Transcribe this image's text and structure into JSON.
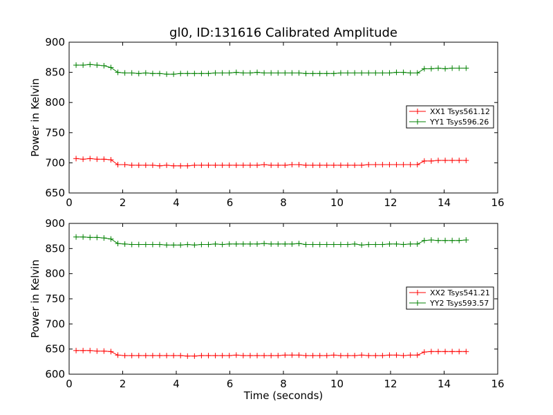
{
  "title": "gl0, ID:131616 Calibrated Amplitude",
  "chart_data": [
    {
      "type": "line",
      "title": "gl0, ID:131616 Calibrated Amplitude",
      "xlabel": "",
      "ylabel": "Power in Kelvin",
      "xlim": [
        0,
        16
      ],
      "ylim": [
        650,
        900
      ],
      "xticks": [
        "0",
        "2",
        "4",
        "6",
        "8",
        "10",
        "12",
        "14",
        "16"
      ],
      "yticks": [
        "650",
        "700",
        "750",
        "800",
        "850",
        "900"
      ],
      "grid": false,
      "legend_position": "right",
      "x": [
        0.26,
        0.52,
        0.78,
        1.04,
        1.3,
        1.56,
        1.82,
        2.08,
        2.34,
        2.6,
        2.86,
        3.12,
        3.38,
        3.64,
        3.9,
        4.16,
        4.42,
        4.68,
        4.94,
        5.2,
        5.46,
        5.72,
        5.98,
        6.24,
        6.5,
        6.76,
        7.02,
        7.28,
        7.54,
        7.8,
        8.06,
        8.32,
        8.58,
        8.84,
        9.1,
        9.36,
        9.62,
        9.88,
        10.14,
        10.4,
        10.66,
        10.92,
        11.18,
        11.44,
        11.7,
        11.96,
        12.22,
        12.48,
        12.74,
        13.0,
        13.26,
        13.52,
        13.78,
        14.04,
        14.3,
        14.56,
        14.82
      ],
      "series": [
        {
          "name": "XX1 Tsys561.12",
          "color": "#ff0000",
          "values": [
            707,
            706,
            707,
            706,
            706,
            705,
            697,
            697,
            696,
            696,
            696,
            696,
            695,
            696,
            695,
            695,
            695,
            696,
            696,
            696,
            696,
            696,
            696,
            696,
            696,
            696,
            696,
            697,
            696,
            696,
            696,
            697,
            697,
            696,
            696,
            696,
            696,
            696,
            696,
            696,
            696,
            696,
            697,
            697,
            697,
            697,
            697,
            697,
            697,
            697,
            703,
            703,
            704,
            704,
            704,
            704,
            704
          ]
        },
        {
          "name": "YY1 Tsys596.26",
          "color": "#008000",
          "values": [
            862,
            862,
            863,
            862,
            861,
            858,
            850,
            849,
            849,
            848,
            849,
            848,
            848,
            847,
            847,
            848,
            848,
            848,
            848,
            848,
            849,
            849,
            849,
            850,
            849,
            849,
            850,
            849,
            849,
            849,
            849,
            849,
            849,
            848,
            848,
            848,
            848,
            848,
            849,
            849,
            849,
            849,
            849,
            849,
            849,
            849,
            850,
            850,
            849,
            849,
            856,
            856,
            857,
            856,
            857,
            857,
            857
          ]
        }
      ]
    },
    {
      "type": "line",
      "title": "",
      "xlabel": "Time (seconds)",
      "ylabel": "Power in Kelvin",
      "xlim": [
        0,
        16
      ],
      "ylim": [
        600,
        900
      ],
      "xticks": [
        "0",
        "2",
        "4",
        "6",
        "8",
        "10",
        "12",
        "14",
        "16"
      ],
      "yticks": [
        "600",
        "650",
        "700",
        "750",
        "800",
        "850",
        "900"
      ],
      "grid": false,
      "legend_position": "right",
      "x": [
        0.26,
        0.52,
        0.78,
        1.04,
        1.3,
        1.56,
        1.82,
        2.08,
        2.34,
        2.6,
        2.86,
        3.12,
        3.38,
        3.64,
        3.9,
        4.16,
        4.42,
        4.68,
        4.94,
        5.2,
        5.46,
        5.72,
        5.98,
        6.24,
        6.5,
        6.76,
        7.02,
        7.28,
        7.54,
        7.8,
        8.06,
        8.32,
        8.58,
        8.84,
        9.1,
        9.36,
        9.62,
        9.88,
        10.14,
        10.4,
        10.66,
        10.92,
        11.18,
        11.44,
        11.7,
        11.96,
        12.22,
        12.48,
        12.74,
        13.0,
        13.26,
        13.52,
        13.78,
        14.04,
        14.3,
        14.56,
        14.82
      ],
      "series": [
        {
          "name": "XX2 Tsys541.21",
          "color": "#ff0000",
          "values": [
            647,
            647,
            647,
            646,
            646,
            645,
            638,
            637,
            637,
            637,
            637,
            637,
            637,
            637,
            637,
            637,
            636,
            636,
            637,
            637,
            637,
            637,
            637,
            638,
            637,
            637,
            637,
            637,
            637,
            637,
            638,
            638,
            638,
            637,
            637,
            637,
            637,
            638,
            637,
            637,
            637,
            638,
            637,
            637,
            637,
            638,
            638,
            637,
            638,
            638,
            644,
            645,
            645,
            645,
            645,
            645,
            645
          ]
        },
        {
          "name": "YY2 Tsys593.57",
          "color": "#008000",
          "values": [
            873,
            873,
            872,
            872,
            871,
            869,
            860,
            859,
            858,
            858,
            858,
            858,
            858,
            857,
            857,
            857,
            858,
            857,
            858,
            858,
            859,
            858,
            859,
            859,
            859,
            859,
            859,
            860,
            859,
            859,
            859,
            859,
            860,
            858,
            858,
            858,
            858,
            858,
            858,
            858,
            859,
            857,
            858,
            858,
            858,
            859,
            859,
            858,
            859,
            859,
            866,
            867,
            866,
            866,
            866,
            866,
            867
          ]
        }
      ]
    }
  ]
}
